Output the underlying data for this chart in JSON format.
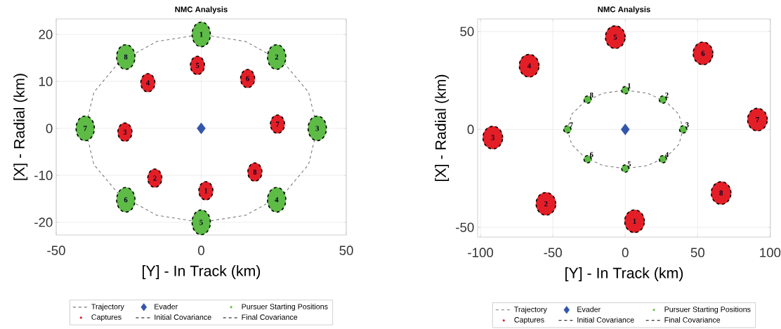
{
  "chart_data": [
    {
      "type": "scatter",
      "title": "NMC Analysis",
      "xlabel": "[Y] - In Track (km)",
      "ylabel": "[X] - Radial (km)",
      "xlim": [
        -50,
        50
      ],
      "ylim": [
        -22.7,
        23.3
      ],
      "xticks": [
        -50,
        0,
        50
      ],
      "yticks": [
        -20,
        -10,
        0,
        10,
        20
      ],
      "grid": true,
      "legend": "bottom",
      "series": [
        {
          "name": "Trajectory",
          "type": "line",
          "color": "#777777",
          "line_style": "dashed",
          "marker": "none",
          "x": [
            40,
            37,
            28.3,
            15.3,
            0,
            -15.3,
            -28.3,
            -37,
            -40,
            null,
            -40,
            -37,
            -28.3,
            -15.3,
            0,
            15.3,
            28.3,
            37,
            40
          ],
          "values": [
            0,
            7.7,
            14.1,
            18.5,
            20,
            18.5,
            14.1,
            7.7,
            0,
            null,
            0,
            -7.7,
            -14.1,
            -18.5,
            -20,
            -18.5,
            -14.1,
            -7.7,
            0
          ]
        },
        {
          "name": "Evader",
          "color": "#3355aa",
          "marker": "diamond",
          "x": [
            0
          ],
          "values": [
            0
          ]
        },
        {
          "name": "Pursuer Starting Positions",
          "color": "#5dbb46",
          "marker": "circle",
          "x": [
            0,
            26,
            40,
            26,
            0,
            -26,
            -40,
            -26
          ],
          "values": [
            20,
            15.2,
            0,
            -15.2,
            -20,
            -15.2,
            0,
            15.2
          ]
        },
        {
          "name": "Captures",
          "color": "#e41e26",
          "marker": "circle",
          "x": [
            1.6,
            -16,
            -26.3,
            -18.4,
            -1.3,
            16,
            26.3,
            18.5
          ],
          "values": [
            -13.3,
            -10.6,
            -0.8,
            9.7,
            13.4,
            10.6,
            0.9,
            -9.3
          ]
        },
        {
          "name": "Initial Covariance",
          "color": "#000000",
          "marker": "circle",
          "line_style": "dashed",
          "x": [
            0,
            26,
            40,
            26,
            0,
            -26,
            -40,
            -26
          ],
          "values": [
            20,
            15.2,
            0,
            -15.2,
            -20,
            -15.2,
            0,
            15.2
          ]
        },
        {
          "name": "Final Covariance",
          "color": "#000000",
          "marker": "circle",
          "line_style": "dashed",
          "x": [
            1.6,
            -16,
            -26.3,
            -18.4,
            -1.3,
            16,
            26.3,
            18.5
          ],
          "values": [
            -13.3,
            -10.6,
            -0.8,
            9.7,
            13.4,
            10.6,
            0.9,
            -9.3
          ]
        }
      ],
      "annotations": [
        {
          "text": "1",
          "x": 0,
          "y": 20
        },
        {
          "text": "2",
          "x": 26,
          "y": 15.2
        },
        {
          "text": "3",
          "x": 40,
          "y": 0
        },
        {
          "text": "4",
          "x": 26,
          "y": -15.2
        },
        {
          "text": "5",
          "x": 0,
          "y": -20
        },
        {
          "text": "6",
          "x": -26,
          "y": -15.2
        },
        {
          "text": "7",
          "x": -40,
          "y": 0
        },
        {
          "text": "8",
          "x": -26,
          "y": 15.2
        },
        {
          "text": "1",
          "x": 1.6,
          "y": -13.3
        },
        {
          "text": "2",
          "x": -16,
          "y": -10.6
        },
        {
          "text": "3",
          "x": -26.3,
          "y": -0.8
        },
        {
          "text": "4",
          "x": -18.4,
          "y": 9.7
        },
        {
          "text": "5",
          "x": -1.3,
          "y": 13.4
        },
        {
          "text": "6",
          "x": 16,
          "y": 10.6
        },
        {
          "text": "7",
          "x": 26.3,
          "y": 0.9
        },
        {
          "text": "8",
          "x": 18.5,
          "y": -9.3
        }
      ]
    },
    {
      "type": "scatter",
      "title": "NMC Analysis",
      "xlabel": "[Y] - In Track (km)",
      "ylabel": "[X] - Radial (km)",
      "xlim": [
        -102,
        100.3
      ],
      "ylim": [
        -55,
        56.4
      ],
      "xticks": [
        -100,
        -50,
        0,
        50,
        100
      ],
      "yticks": [
        -50,
        0,
        50
      ],
      "grid": true,
      "legend": "bottom",
      "series": [
        {
          "name": "Trajectory",
          "type": "line",
          "color": "#777777",
          "line_style": "dashed",
          "marker": "none",
          "x": [
            40,
            37,
            28.3,
            15.3,
            0,
            -15.3,
            -28.3,
            -37,
            -40,
            null,
            -40,
            -37,
            -28.3,
            -15.3,
            0,
            15.3,
            28.3,
            37,
            40
          ],
          "values": [
            0,
            7.7,
            14.1,
            18.5,
            20,
            18.5,
            14.1,
            7.7,
            0,
            null,
            0,
            -7.7,
            -14.1,
            -18.5,
            -20,
            -18.5,
            -14.1,
            -7.7,
            0
          ]
        },
        {
          "name": "Evader",
          "color": "#3355aa",
          "marker": "diamond",
          "x": [
            0
          ],
          "values": [
            0
          ]
        },
        {
          "name": "Pursuer Starting Positions",
          "color": "#5dbb46",
          "marker": "circle",
          "x": [
            0,
            26,
            40,
            26,
            0,
            -26,
            -40,
            -26
          ],
          "values": [
            20,
            15.2,
            0,
            -15.2,
            -20,
            -15.2,
            0,
            15.2
          ]
        },
        {
          "name": "Captures",
          "color": "#e41e26",
          "marker": "circle",
          "x": [
            6.4,
            -54.8,
            -91.5,
            -66.4,
            -6.9,
            53.7,
            91.3,
            66.2
          ],
          "values": [
            -46.9,
            -38,
            -4.2,
            32.5,
            47.1,
            38.8,
            5,
            -32.5
          ]
        },
        {
          "name": "Initial Covariance",
          "color": "#000000",
          "marker": "circle",
          "line_style": "dashed",
          "x": [
            0,
            26,
            40,
            26,
            0,
            -26,
            -40,
            -26
          ],
          "values": [
            20,
            15.2,
            0,
            -15.2,
            -20,
            -15.2,
            0,
            15.2
          ]
        },
        {
          "name": "Final Covariance",
          "color": "#000000",
          "marker": "circle",
          "line_style": "dashed",
          "x": [
            6.4,
            -54.8,
            -91.5,
            -66.4,
            -6.9,
            53.7,
            91.3,
            66.2
          ],
          "values": [
            -46.9,
            -38,
            -4.2,
            32.5,
            47.1,
            38.8,
            5,
            -32.5
          ]
        }
      ],
      "annotations": [
        {
          "text": "1",
          "x": 0,
          "y": 20
        },
        {
          "text": "2",
          "x": 26,
          "y": 15.2
        },
        {
          "text": "3",
          "x": 40,
          "y": 0
        },
        {
          "text": "4",
          "x": 26,
          "y": -15.2
        },
        {
          "text": "5",
          "x": 0,
          "y": -20
        },
        {
          "text": "6",
          "x": -26,
          "y": -15.2
        },
        {
          "text": "7",
          "x": -40,
          "y": 0
        },
        {
          "text": "8",
          "x": -26,
          "y": 15.2
        },
        {
          "text": "1",
          "x": 6.4,
          "y": -46.9
        },
        {
          "text": "2",
          "x": -54.8,
          "y": -38
        },
        {
          "text": "3",
          "x": -91.5,
          "y": -4.2
        },
        {
          "text": "4",
          "x": -66.4,
          "y": 32.5
        },
        {
          "text": "5",
          "x": -6.9,
          "y": 47.1
        },
        {
          "text": "6",
          "x": 53.7,
          "y": 38.8
        },
        {
          "text": "7",
          "x": 91.3,
          "y": 5
        },
        {
          "text": "8",
          "x": 66.2,
          "y": -32.5
        }
      ]
    }
  ]
}
